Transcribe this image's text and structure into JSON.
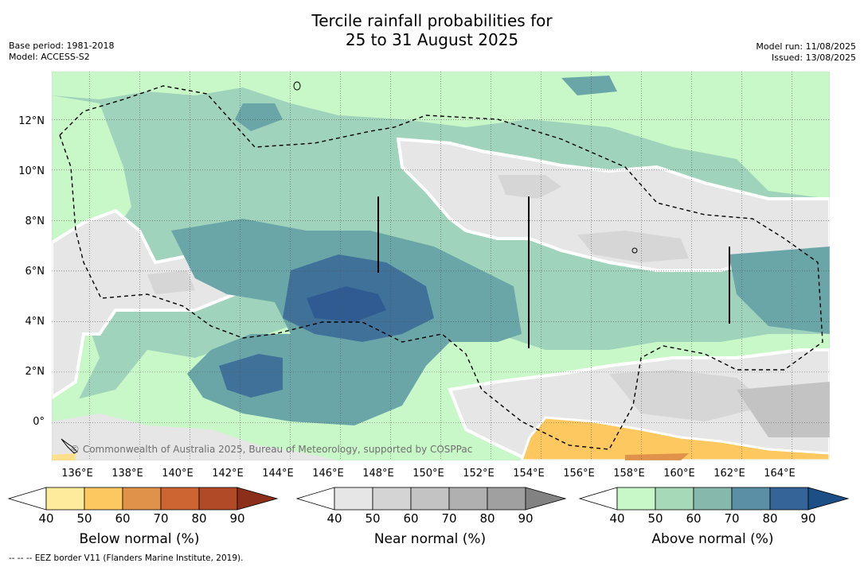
{
  "title": {
    "line1": "Tercile rainfall probabilities for",
    "line2": "25 to 31 August 2025"
  },
  "meta_left": {
    "base_period": "Base period: 1981-2018",
    "model": "Model: ACCESS-S2"
  },
  "meta_right": {
    "model_run": "Model run: 11/08/2025",
    "issued": "Issued: 13/08/2025"
  },
  "watermark": "© Commonwealth of Australia 2025, Bureau of Meteorology, supported by COSPPac",
  "footnote": "--  --  -- EEZ border V11 (Flanders Marine Institute, 2019).",
  "map": {
    "lon_range": [
      134.5,
      165.5
    ],
    "lat_range": [
      -1.5,
      13.9
    ],
    "lat_labels": [
      "12°N",
      "10°N",
      "8°N",
      "6°N",
      "4°N",
      "2°N",
      "0°"
    ],
    "lon_labels": [
      "136°E",
      "138°E",
      "140°E",
      "142°E",
      "144°E",
      "146°E",
      "148°E",
      "150°E",
      "152°E",
      "154°E",
      "156°E",
      "158°E",
      "160°E",
      "162°E",
      "164°E"
    ],
    "lat_values": [
      12,
      10,
      8,
      6,
      4,
      2,
      0
    ],
    "lon_values": [
      136,
      138,
      140,
      142,
      144,
      146,
      148,
      150,
      152,
      154,
      156,
      158,
      160,
      162,
      164
    ]
  },
  "colorbars": [
    {
      "title": "Below normal (%)",
      "ticks": [
        "40",
        "50",
        "60",
        "70",
        "80",
        "90"
      ],
      "colors": [
        "#ffffff",
        "#ffeb9c",
        "#fdc860",
        "#e0924a",
        "#cd6533",
        "#b14a26",
        "#8c2f1a"
      ]
    },
    {
      "title": "Near normal (%)",
      "ticks": [
        "40",
        "50",
        "60",
        "70",
        "80",
        "90"
      ],
      "colors": [
        "#ffffff",
        "#e6e6e6",
        "#d4d4d4",
        "#c3c3c3",
        "#b0b0b0",
        "#a0a0a0",
        "#828282"
      ]
    },
    {
      "title": "Above normal (%)",
      "ticks": [
        "40",
        "50",
        "60",
        "70",
        "80",
        "90"
      ],
      "colors": [
        "#ffffff",
        "#c9f8c8",
        "#a5d9b8",
        "#87b8ac",
        "#5a8fa5",
        "#356498",
        "#1c4f86"
      ]
    }
  ],
  "palette": {
    "above_50": "#c9f8c8",
    "above_60": "#9fd3bb",
    "above_70": "#6aa6a8",
    "above_80": "#3f7199",
    "above_90": "#2f5b92",
    "near_40": "#e6e6e6",
    "near_50": "#d6d6d6",
    "below_50": "#ffe08a",
    "below_60": "#fdc860",
    "below_70": "#e0924a"
  }
}
